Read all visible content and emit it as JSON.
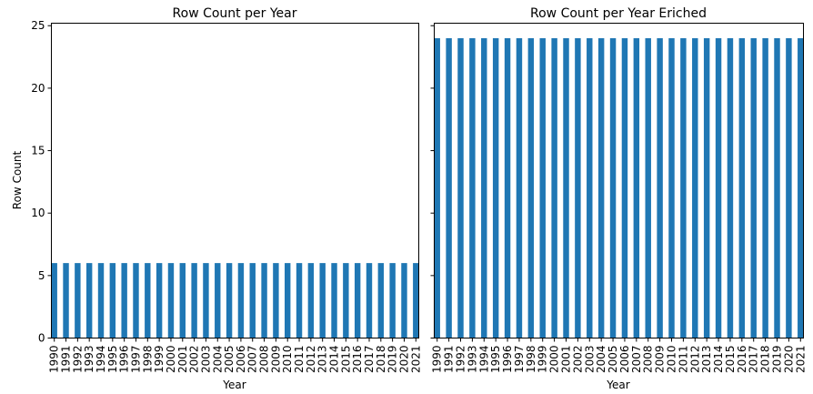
{
  "chart_data": [
    {
      "type": "bar",
      "title": "Row Count per Year",
      "xlabel": "Year",
      "ylabel": "Row Count",
      "categories": [
        "1990",
        "1991",
        "1992",
        "1993",
        "1994",
        "1995",
        "1996",
        "1997",
        "1998",
        "1999",
        "2000",
        "2001",
        "2002",
        "2003",
        "2004",
        "2005",
        "2006",
        "2007",
        "2008",
        "2009",
        "2010",
        "2011",
        "2012",
        "2013",
        "2014",
        "2015",
        "2016",
        "2017",
        "2018",
        "2019",
        "2020",
        "2021"
      ],
      "values": [
        6,
        6,
        6,
        6,
        6,
        6,
        6,
        6,
        6,
        6,
        6,
        6,
        6,
        6,
        6,
        6,
        6,
        6,
        6,
        6,
        6,
        6,
        6,
        6,
        6,
        6,
        6,
        6,
        6,
        6,
        6,
        6
      ],
      "ylim": [
        0,
        25.2
      ],
      "yticks": [
        0,
        5,
        10,
        15,
        20,
        25
      ],
      "color": "#1f77b4",
      "grid": false,
      "show_ytick_labels": true
    },
    {
      "type": "bar",
      "title": "Row Count per Year Eriched",
      "xlabel": "Year",
      "ylabel": "",
      "categories": [
        "1990",
        "1991",
        "1992",
        "1993",
        "1994",
        "1995",
        "1996",
        "1997",
        "1998",
        "1999",
        "2000",
        "2001",
        "2002",
        "2003",
        "2004",
        "2005",
        "2006",
        "2007",
        "2008",
        "2009",
        "2010",
        "2011",
        "2012",
        "2013",
        "2014",
        "2015",
        "2016",
        "2017",
        "2018",
        "2019",
        "2020",
        "2021"
      ],
      "values": [
        24,
        24,
        24,
        24,
        24,
        24,
        24,
        24,
        24,
        24,
        24,
        24,
        24,
        24,
        24,
        24,
        24,
        24,
        24,
        24,
        24,
        24,
        24,
        24,
        24,
        24,
        24,
        24,
        24,
        24,
        24,
        24
      ],
      "ylim": [
        0,
        25.2
      ],
      "yticks": [
        0,
        5,
        10,
        15,
        20,
        25
      ],
      "color": "#1f77b4",
      "grid": false,
      "show_ytick_labels": false
    }
  ]
}
